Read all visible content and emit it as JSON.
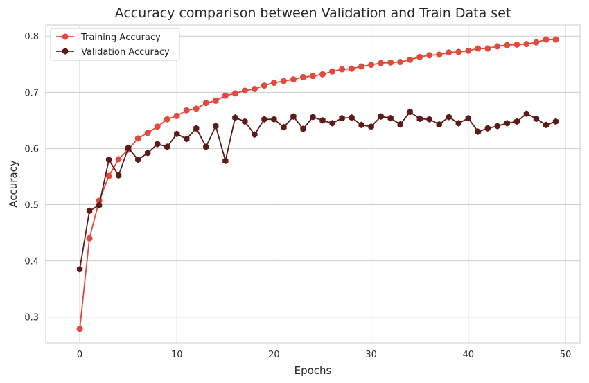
{
  "chart_data": {
    "type": "line",
    "title": "Accuracy comparison between Validation and Train Data set",
    "xlabel": "Epochs",
    "ylabel": "Accuracy",
    "xlim": [
      -3.5,
      51.5
    ],
    "ylim": [
      0.254,
      0.82
    ],
    "xticks": [
      0,
      10,
      20,
      30,
      40,
      50
    ],
    "yticks": [
      0.3,
      0.4,
      0.5,
      0.6,
      0.7,
      0.8
    ],
    "grid": true,
    "legend_position": "top-left",
    "x": [
      0,
      1,
      2,
      3,
      4,
      5,
      6,
      7,
      8,
      9,
      10,
      11,
      12,
      13,
      14,
      15,
      16,
      17,
      18,
      19,
      20,
      21,
      22,
      23,
      24,
      25,
      26,
      27,
      28,
      29,
      30,
      31,
      32,
      33,
      34,
      35,
      36,
      37,
      38,
      39,
      40,
      41,
      42,
      43,
      44,
      45,
      46,
      47,
      48,
      49
    ],
    "series": [
      {
        "name": "Training Accuracy",
        "color": "#e24a3b",
        "marker": "circle",
        "values": [
          0.279,
          0.44,
          0.507,
          0.551,
          0.581,
          0.598,
          0.618,
          0.628,
          0.639,
          0.652,
          0.658,
          0.668,
          0.671,
          0.681,
          0.685,
          0.694,
          0.698,
          0.703,
          0.706,
          0.712,
          0.717,
          0.72,
          0.723,
          0.727,
          0.729,
          0.732,
          0.737,
          0.741,
          0.742,
          0.746,
          0.749,
          0.752,
          0.753,
          0.754,
          0.758,
          0.763,
          0.766,
          0.767,
          0.771,
          0.772,
          0.774,
          0.778,
          0.778,
          0.782,
          0.784,
          0.785,
          0.786,
          0.789,
          0.794,
          0.794
        ]
      },
      {
        "name": "Validation Accuracy",
        "color": "#5c1b17",
        "marker": "hexagon",
        "values": [
          0.385,
          0.489,
          0.499,
          0.58,
          0.552,
          0.601,
          0.58,
          0.592,
          0.608,
          0.603,
          0.626,
          0.617,
          0.636,
          0.603,
          0.64,
          0.578,
          0.655,
          0.648,
          0.625,
          0.652,
          0.652,
          0.638,
          0.657,
          0.635,
          0.656,
          0.65,
          0.645,
          0.654,
          0.655,
          0.642,
          0.639,
          0.657,
          0.654,
          0.643,
          0.665,
          0.653,
          0.652,
          0.643,
          0.656,
          0.645,
          0.654,
          0.63,
          0.636,
          0.64,
          0.645,
          0.648,
          0.662,
          0.653,
          0.642,
          0.648
        ]
      }
    ]
  }
}
